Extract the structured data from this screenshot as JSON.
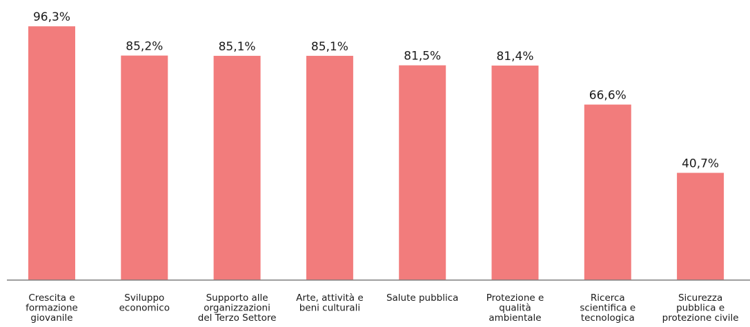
{
  "chart_data": {
    "type": "bar",
    "title": "",
    "xlabel": "",
    "ylabel": "",
    "ylim": [
      0,
      100
    ],
    "grid": false,
    "legend": "none",
    "bar_color": "#f27c7c",
    "axis_color": "#7f7f7f",
    "categories": [
      [
        "Crescita e",
        "formazione",
        "giovanile"
      ],
      [
        "Sviluppo",
        "economico"
      ],
      [
        "Supporto alle",
        "organizzazioni",
        "del Terzo Settore"
      ],
      [
        "Arte, attività e",
        "beni culturali"
      ],
      [
        "Salute pubblica"
      ],
      [
        "Protezione e",
        "qualità",
        "ambientale"
      ],
      [
        "Ricerca",
        "scientifica e",
        "tecnologica"
      ],
      [
        "Sicurezza",
        "pubblica e",
        "protezione civile"
      ]
    ],
    "values": [
      96.3,
      85.2,
      85.1,
      85.1,
      81.5,
      81.4,
      66.6,
      40.7
    ],
    "value_labels": [
      "96,3%",
      "85,2%",
      "85,1%",
      "85,1%",
      "81,5%",
      "81,4%",
      "66,6%",
      "40,7%"
    ]
  }
}
